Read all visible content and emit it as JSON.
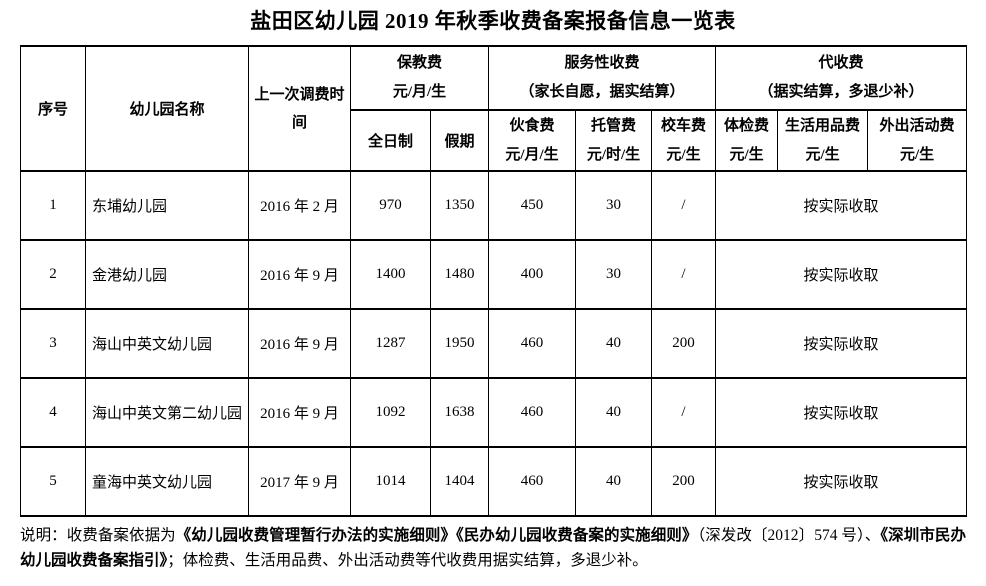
{
  "title": "盐田区幼儿园 2019 年秋季收费备案报备信息一览表",
  "table": {
    "header": {
      "col_no": "序号",
      "col_name": "幼儿园名称",
      "col_last_adjust": "上一次调费时间",
      "group_tuition": {
        "line1": "保教费",
        "line2": "元/月/生"
      },
      "sub_fulltime": "全日制",
      "sub_holiday": "假期",
      "group_service": {
        "line1": "服务性收费",
        "line2": "（家长自愿，据实结算）"
      },
      "sub_meal": {
        "line1": "伙食费",
        "line2": "元/月/生"
      },
      "sub_care": {
        "line1": "托管费",
        "line2": "元/时/生"
      },
      "sub_bus": {
        "line1": "校车费",
        "line2": "元/生"
      },
      "group_collect": {
        "line1": "代收费",
        "line2": "（据实结算，多退少补）"
      },
      "sub_checkup": {
        "line1": "体检费",
        "line2": "元/生"
      },
      "sub_daily_goods": {
        "line1": "生活用品费",
        "line2": "元/生"
      },
      "sub_outing": {
        "line1": "外出活动费",
        "line2": "元/生"
      }
    },
    "rows": [
      {
        "no": "1",
        "name": "东埔幼儿园",
        "last_adjust": "2016 年 2 月",
        "fulltime": "970",
        "holiday": "1350",
        "meal": "450",
        "care": "30",
        "bus": "/",
        "collect": "按实际收取"
      },
      {
        "no": "2",
        "name": "金港幼儿园",
        "last_adjust": "2016 年 9 月",
        "fulltime": "1400",
        "holiday": "1480",
        "meal": "400",
        "care": "30",
        "bus": "/",
        "collect": "按实际收取"
      },
      {
        "no": "3",
        "name": "海山中英文幼儿园",
        "last_adjust": "2016 年 9 月",
        "fulltime": "1287",
        "holiday": "1950",
        "meal": "460",
        "care": "40",
        "bus": "200",
        "collect": "按实际收取"
      },
      {
        "no": "4",
        "name": "海山中英文第二幼儿园",
        "last_adjust": "2016 年 9 月",
        "fulltime": "1092",
        "holiday": "1638",
        "meal": "460",
        "care": "40",
        "bus": "/",
        "collect": "按实际收取"
      },
      {
        "no": "5",
        "name": "童海中英文幼儿园",
        "last_adjust": "2017 年 9 月",
        "fulltime": "1014",
        "holiday": "1404",
        "meal": "460",
        "care": "40",
        "bus": "200",
        "collect": "按实际收取"
      }
    ]
  },
  "footnote": {
    "segments": [
      {
        "text": "说明：收费备案依据为",
        "bold": false
      },
      {
        "text": "《幼儿园收费管理暂行办法的实施细则》《民办幼儿园收费备案的实施细则》",
        "bold": true
      },
      {
        "text": "（深发改〔2012〕574 号）、",
        "bold": false
      },
      {
        "text": "《深圳市民办幼儿园收费备案指引》",
        "bold": true
      },
      {
        "text": "；体检费、生活用品费、外出活动费等代收费用据实结算，多退少补。",
        "bold": false
      }
    ]
  },
  "colors": {
    "text": "#000000",
    "background": "#ffffff",
    "border": "#000000"
  }
}
